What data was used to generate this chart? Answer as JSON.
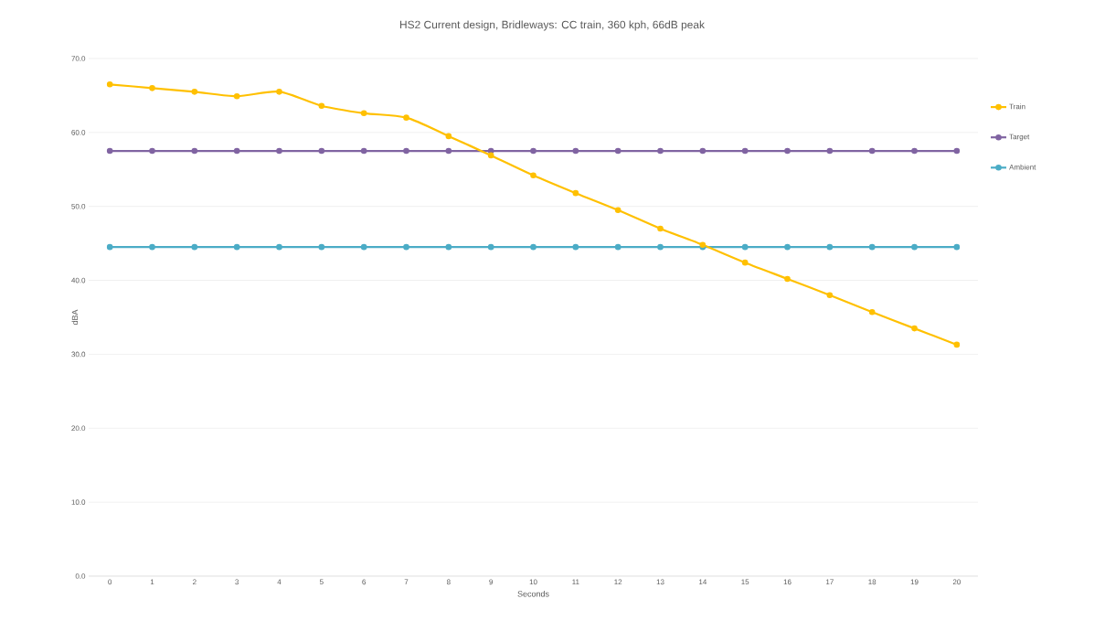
{
  "chart_data": {
    "type": "line",
    "title": "HS2 Current design, Bridleways: CC train, 360 kph, 66dB peak",
    "xlabel": "Seconds",
    "ylabel": "dBA",
    "categories": [
      "0",
      "1",
      "2",
      "3",
      "4",
      "5",
      "6",
      "7",
      "8",
      "9",
      "10",
      "11",
      "12",
      "13",
      "14",
      "15",
      "16",
      "17",
      "18",
      "19",
      "20"
    ],
    "series": [
      {
        "name": "Train",
        "color": "#ffc000",
        "values": [
          66.5,
          66.0,
          65.5,
          64.9,
          65.5,
          63.6,
          62.6,
          62.0,
          59.5,
          56.9,
          54.2,
          51.8,
          49.5,
          47.0,
          44.8,
          42.4,
          40.2,
          38.0,
          35.7,
          33.5,
          31.3
        ]
      },
      {
        "name": "Target",
        "color": "#8064a2",
        "values": [
          57.5,
          57.5,
          57.5,
          57.5,
          57.5,
          57.5,
          57.5,
          57.5,
          57.5,
          57.5,
          57.5,
          57.5,
          57.5,
          57.5,
          57.5,
          57.5,
          57.5,
          57.5,
          57.5,
          57.5,
          57.5
        ]
      },
      {
        "name": "Ambient",
        "color": "#4bacc6",
        "values": [
          44.5,
          44.5,
          44.5,
          44.5,
          44.5,
          44.5,
          44.5,
          44.5,
          44.5,
          44.5,
          44.5,
          44.5,
          44.5,
          44.5,
          44.5,
          44.5,
          44.5,
          44.5,
          44.5,
          44.5,
          44.5
        ]
      }
    ],
    "ylim": [
      0,
      70
    ],
    "yticks": [
      {
        "value": 0,
        "label": "0.0"
      },
      {
        "value": 10,
        "label": "10.0"
      },
      {
        "value": 20,
        "label": "20.0"
      },
      {
        "value": 30,
        "label": "30.0"
      },
      {
        "value": 40,
        "label": "40.0"
      },
      {
        "value": 50,
        "label": "50.0"
      },
      {
        "value": 60,
        "label": "60.0"
      },
      {
        "value": 70,
        "label": "70.0"
      }
    ],
    "grid": "y",
    "legend": "right",
    "marker": "circle",
    "line_style": "solid"
  }
}
